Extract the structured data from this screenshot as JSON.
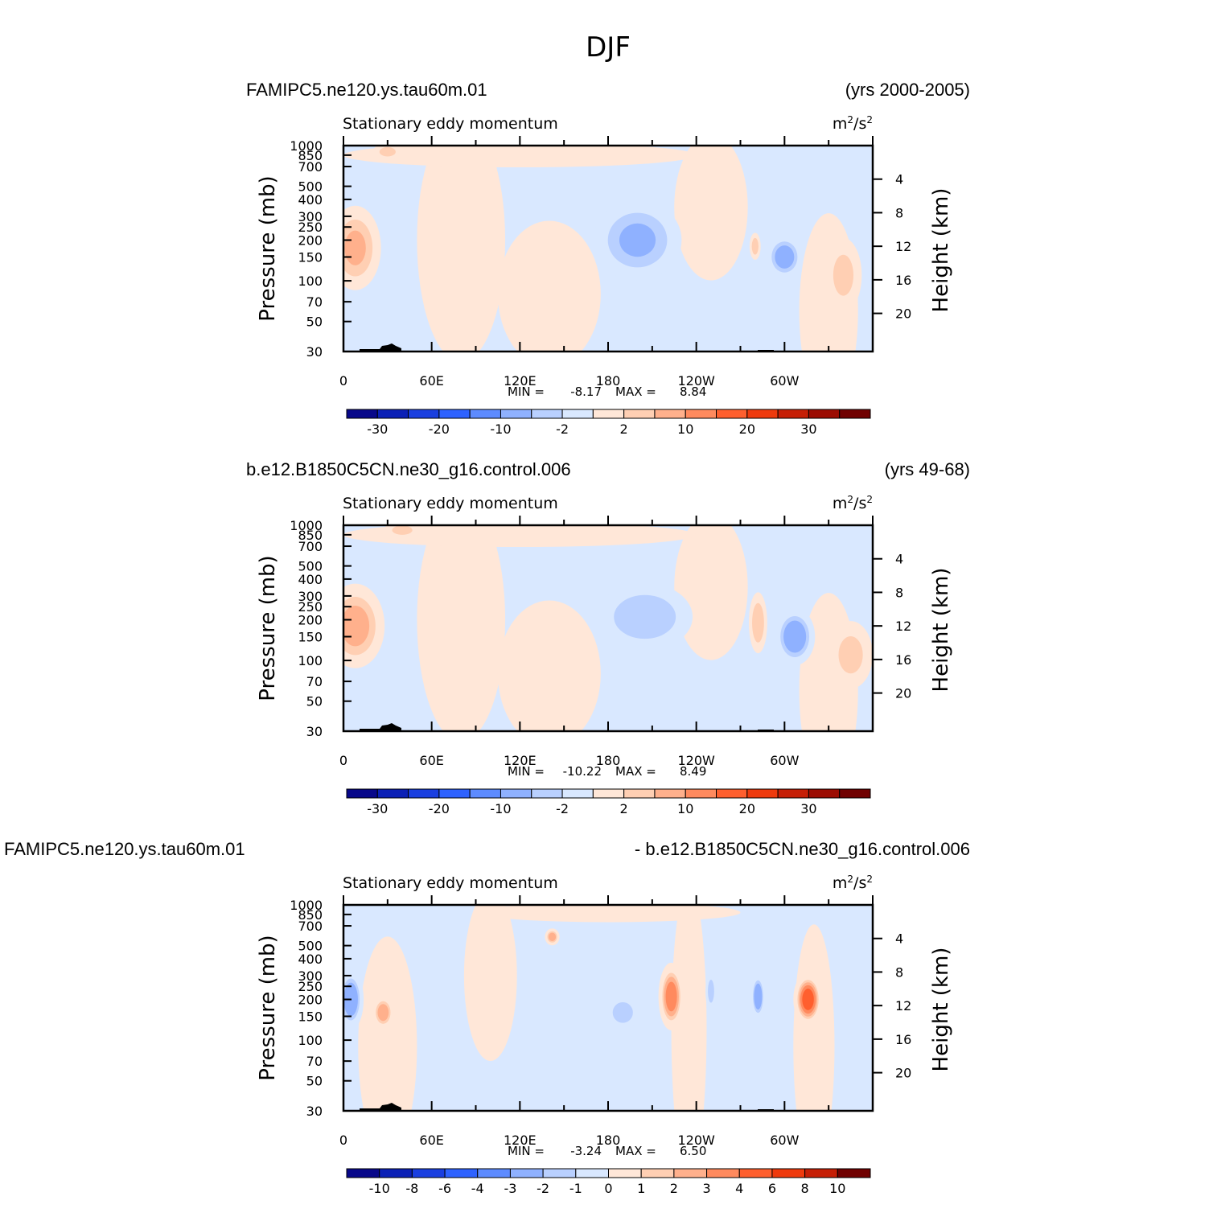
{
  "figure_title": "DJF",
  "chart_data": [
    {
      "type": "contour",
      "case_name": "FAMIPC5.ne120.ys.tau60m.01",
      "period": "(yrs 2000-2005)",
      "variable": "Stationary eddy momentum",
      "units_base": "m",
      "units_sup": "2",
      "units_sep": "/s",
      "units_sup2": "2",
      "ylabel_left": "Pressure (mb)",
      "ylabel_right": "Height (km)",
      "xticks": [
        "0",
        "60E",
        "120E",
        "180",
        "120W",
        "60W"
      ],
      "pressure_ticks": [
        "30",
        "50",
        "70",
        "100",
        "150",
        "200",
        "250",
        "300",
        "400",
        "500",
        "700",
        "850",
        "1000"
      ],
      "height_ticks": [
        "20",
        "16",
        "12",
        "8",
        "4"
      ],
      "min_label": "MIN =",
      "min_value": "-8.17",
      "max_label": "MAX =",
      "max_value": "8.84",
      "colorbar_labels": [
        "-30",
        "-20",
        "-10",
        "-2",
        "2",
        "10",
        "20",
        "30"
      ],
      "blobs": [
        {
          "lon": 8,
          "p": 175,
          "lonw": 14,
          "dlogp": 0.25,
          "v": 6
        },
        {
          "lon": 200,
          "p": 200,
          "lonw": 24,
          "dlogp": 0.24,
          "v": -6
        },
        {
          "lon": 300,
          "p": 150,
          "lonw": 10,
          "dlogp": 0.13,
          "v": -8
        },
        {
          "lon": 340,
          "p": 110,
          "lonw": 10,
          "dlogp": 0.22,
          "v": 3
        },
        {
          "lon": 30,
          "p": 900,
          "lonw": 8,
          "dlogp": 0.05,
          "v": 3
        },
        {
          "lon": 280,
          "p": 180,
          "lonw": 3,
          "dlogp": 0.08,
          "v": 4
        }
      ]
    },
    {
      "type": "contour",
      "case_name": "b.e12.B1850C5CN.ne30_g16.control.006",
      "period": "(yrs 49-68)",
      "variable": "Stationary eddy momentum",
      "units_base": "m",
      "units_sup": "2",
      "units_sep": "/s",
      "units_sup2": "2",
      "ylabel_left": "Pressure (mb)",
      "ylabel_right": "Height (km)",
      "xticks": [
        "0",
        "60E",
        "120E",
        "180",
        "120W",
        "60W"
      ],
      "pressure_ticks": [
        "30",
        "50",
        "70",
        "100",
        "150",
        "200",
        "250",
        "300",
        "400",
        "500",
        "700",
        "850",
        "1000"
      ],
      "height_ticks": [
        "20",
        "16",
        "12",
        "8",
        "4"
      ],
      "min_label": "MIN =",
      "min_value": "-10.22",
      "max_label": "MAX =",
      "max_value": "8.49",
      "colorbar_labels": [
        "-30",
        "-20",
        "-10",
        "-2",
        "2",
        "10",
        "20",
        "30"
      ],
      "blobs": [
        {
          "lon": 8,
          "p": 180,
          "lonw": 16,
          "dlogp": 0.25,
          "v": 7
        },
        {
          "lon": 205,
          "p": 210,
          "lonw": 26,
          "dlogp": 0.2,
          "v": -5
        },
        {
          "lon": 307,
          "p": 150,
          "lonw": 11,
          "dlogp": 0.17,
          "v": -9
        },
        {
          "lon": 282,
          "p": 190,
          "lonw": 5,
          "dlogp": 0.18,
          "v": 5
        },
        {
          "lon": 345,
          "p": 110,
          "lonw": 12,
          "dlogp": 0.2,
          "v": 3
        },
        {
          "lon": 40,
          "p": 920,
          "lonw": 10,
          "dlogp": 0.05,
          "v": 3
        }
      ]
    },
    {
      "type": "contour",
      "case_name": "FAMIPC5.ne120.ys.tau60m.01",
      "period": "- b.e12.B1850C5CN.ne30_g16.control.006",
      "variable": "Stationary eddy momentum",
      "units_base": "m",
      "units_sup": "2",
      "units_sep": "/s",
      "units_sup2": "2",
      "ylabel_left": "Pressure (mb)",
      "ylabel_right": "Height (km)",
      "xticks": [
        "0",
        "60E",
        "120E",
        "180",
        "120W",
        "60W"
      ],
      "pressure_ticks": [
        "30",
        "50",
        "70",
        "100",
        "150",
        "200",
        "250",
        "300",
        "400",
        "500",
        "700",
        "850",
        "1000"
      ],
      "height_ticks": [
        "20",
        "16",
        "12",
        "8",
        "4"
      ],
      "min_label": "MIN =",
      "min_value": "-3.24",
      "max_label": "MAX =",
      "max_value": "6.50",
      "colorbar_labels": [
        "-10",
        "-8",
        "-6",
        "-4",
        "-3",
        "-2",
        "-1",
        "0",
        "1",
        "2",
        "3",
        "4",
        "6",
        "8",
        "10"
      ],
      "blobs": [
        {
          "lon": 5,
          "p": 200,
          "lonw": 7,
          "dlogp": 0.18,
          "v": -3
        },
        {
          "lon": 27,
          "p": 160,
          "lonw": 6,
          "dlogp": 0.1,
          "v": 2.5
        },
        {
          "lon": 190,
          "p": 160,
          "lonw": 9,
          "dlogp": 0.1,
          "v": -1.6
        },
        {
          "lon": 223,
          "p": 210,
          "lonw": 7,
          "dlogp": 0.2,
          "v": 3.5
        },
        {
          "lon": 282,
          "p": 210,
          "lonw": 4,
          "dlogp": 0.14,
          "v": -3
        },
        {
          "lon": 316,
          "p": 200,
          "lonw": 8,
          "dlogp": 0.16,
          "v": 4.5
        },
        {
          "lon": 250,
          "p": 230,
          "lonw": 3,
          "dlogp": 0.12,
          "v": -1.2
        },
        {
          "lon": 142,
          "p": 580,
          "lonw": 4,
          "dlogp": 0.05,
          "v": 2.5
        }
      ]
    }
  ]
}
